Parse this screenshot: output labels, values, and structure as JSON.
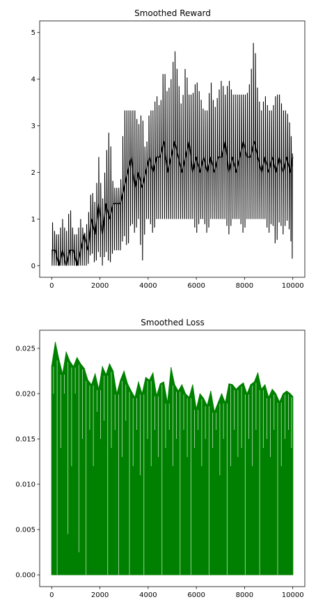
{
  "chart_data": [
    {
      "type": "line",
      "title": "Smoothed Reward",
      "xlabel": "",
      "ylabel": "",
      "xlim": [
        -500,
        10500
      ],
      "ylim": [
        -0.25,
        5.25
      ],
      "xticks": [
        0,
        2000,
        4000,
        6000,
        8000,
        10000
      ],
      "yticks": [
        0,
        1,
        2,
        3,
        4,
        5
      ],
      "xtick_labels": [
        "0",
        "2000",
        "4000",
        "6000",
        "8000",
        "10000"
      ],
      "ytick_labels": [
        "0",
        "1",
        "2",
        "3",
        "4",
        "5"
      ],
      "grid": false,
      "series": [
        {
          "color": "#000000",
          "x": [
            0,
            150,
            300,
            450,
            600,
            750,
            900,
            1050,
            1200,
            1350,
            1500,
            1650,
            1800,
            1950,
            2100,
            2250,
            2400,
            2550,
            2700,
            2850,
            3000,
            3150,
            3300,
            3450,
            3600,
            3750,
            3900,
            4050,
            4200,
            4350,
            4500,
            4650,
            4800,
            4950,
            5100,
            5250,
            5400,
            5550,
            5700,
            5850,
            6000,
            6150,
            6300,
            6450,
            6600,
            6750,
            6900,
            7050,
            7200,
            7350,
            7500,
            7650,
            7800,
            7950,
            8100,
            8250,
            8400,
            8550,
            8700,
            8850,
            9000,
            9150,
            9300,
            9450,
            9600,
            9750,
            9900,
            10000
          ],
          "y": [
            0.33,
            0.33,
            0.0,
            0.33,
            0.0,
            0.33,
            0.33,
            0.0,
            0.33,
            0.67,
            0.33,
            1.0,
            0.67,
            1.33,
            0.67,
            1.33,
            1.0,
            1.33,
            1.33,
            1.33,
            1.67,
            2.0,
            2.33,
            1.67,
            2.0,
            1.67,
            2.0,
            2.33,
            2.0,
            2.33,
            2.33,
            2.67,
            2.0,
            2.33,
            2.67,
            2.33,
            2.0,
            2.33,
            2.67,
            2.0,
            2.33,
            2.0,
            2.33,
            2.0,
            2.33,
            2.0,
            2.33,
            2.33,
            2.67,
            2.0,
            2.33,
            2.0,
            2.33,
            2.67,
            2.33,
            2.33,
            2.67,
            2.33,
            2.0,
            2.33,
            2.0,
            2.33,
            2.0,
            2.33,
            2.0,
            2.33,
            2.0,
            2.33
          ],
          "low": [
            0.0,
            0.0,
            0.0,
            0.0,
            0.0,
            0.0,
            0.0,
            0.0,
            0.0,
            0.0,
            0.0,
            0.33,
            0.0,
            0.33,
            0.0,
            0.33,
            0.0,
            0.33,
            0.33,
            0.33,
            0.67,
            0.33,
            1.0,
            0.67,
            1.0,
            0.0,
            1.0,
            1.0,
            0.67,
            1.0,
            1.0,
            1.0,
            1.0,
            1.0,
            1.0,
            1.0,
            1.0,
            1.0,
            1.0,
            1.0,
            0.67,
            1.0,
            1.0,
            0.67,
            1.0,
            1.0,
            1.0,
            1.0,
            1.0,
            0.67,
            1.0,
            1.0,
            1.0,
            0.67,
            1.0,
            1.0,
            1.0,
            1.0,
            1.0,
            1.0,
            0.67,
            1.0,
            0.33,
            1.0,
            0.67,
            1.0,
            0.67,
            0.0
          ],
          "high": [
            1.0,
            0.67,
            0.67,
            1.0,
            0.67,
            1.33,
            0.67,
            0.67,
            1.0,
            0.67,
            1.0,
            1.67,
            1.33,
            2.33,
            1.33,
            2.33,
            3.0,
            1.67,
            1.67,
            1.67,
            3.33,
            3.33,
            3.33,
            3.33,
            3.0,
            3.33,
            2.33,
            3.33,
            3.33,
            3.67,
            3.33,
            4.33,
            3.67,
            4.0,
            4.67,
            4.0,
            3.33,
            4.33,
            3.67,
            3.67,
            4.0,
            3.67,
            3.33,
            3.33,
            4.0,
            3.33,
            3.67,
            4.0,
            3.67,
            4.0,
            3.67,
            3.67,
            3.67,
            3.67,
            3.67,
            4.0,
            5.0,
            3.67,
            3.33,
            3.67,
            3.33,
            3.33,
            3.67,
            3.67,
            3.33,
            3.33,
            3.0,
            2.33
          ]
        }
      ]
    },
    {
      "type": "bar",
      "title": "Smoothed Loss",
      "xlabel": "",
      "ylabel": "",
      "xlim": [
        -500,
        10500
      ],
      "ylim": [
        -0.0013,
        0.027
      ],
      "xticks": [
        0,
        2000,
        4000,
        6000,
        8000,
        10000
      ],
      "yticks": [
        0.0,
        0.005,
        0.01,
        0.015,
        0.02,
        0.025
      ],
      "xtick_labels": [
        "0",
        "2000",
        "4000",
        "6000",
        "8000",
        "10000"
      ],
      "ytick_labels": [
        "0.000",
        "0.005",
        "0.010",
        "0.015",
        "0.020",
        "0.025"
      ],
      "grid": false,
      "series": [
        {
          "color": "#008000",
          "x": [
            0,
            150,
            300,
            450,
            600,
            750,
            900,
            1050,
            1200,
            1350,
            1500,
            1650,
            1800,
            1950,
            2100,
            2250,
            2400,
            2550,
            2700,
            2850,
            3000,
            3150,
            3300,
            3450,
            3600,
            3750,
            3900,
            4050,
            4200,
            4350,
            4500,
            4650,
            4800,
            4950,
            5100,
            5250,
            5400,
            5550,
            5700,
            5850,
            6000,
            6150,
            6300,
            6450,
            6600,
            6750,
            6900,
            7050,
            7200,
            7350,
            7500,
            7650,
            7800,
            7950,
            8100,
            8250,
            8400,
            8550,
            8700,
            8850,
            9000,
            9150,
            9300,
            9450,
            9600,
            9750,
            9900,
            10000
          ],
          "values": [
            0.0231,
            0.0257,
            0.0238,
            0.0222,
            0.0246,
            0.0236,
            0.023,
            0.024,
            0.0233,
            0.0228,
            0.0215,
            0.021,
            0.0222,
            0.0205,
            0.023,
            0.0221,
            0.0233,
            0.0225,
            0.02,
            0.0215,
            0.0225,
            0.0211,
            0.0203,
            0.0196,
            0.0213,
            0.02,
            0.0218,
            0.0215,
            0.0223,
            0.0198,
            0.0211,
            0.0213,
            0.019,
            0.0229,
            0.021,
            0.0203,
            0.021,
            0.02,
            0.0196,
            0.021,
            0.0183,
            0.02,
            0.0195,
            0.0187,
            0.0203,
            0.018,
            0.019,
            0.02,
            0.019,
            0.0211,
            0.021,
            0.0205,
            0.0209,
            0.0212,
            0.02,
            0.021,
            0.0213,
            0.0223,
            0.0205,
            0.021,
            0.0196,
            0.0205,
            0.02,
            0.0191,
            0.02,
            0.0203,
            0.02,
            0.0197
          ],
          "dips": [
            0.02,
            0.0,
            0.014,
            0.02,
            0.0045,
            0.012,
            0.02,
            0.0025,
            0.015,
            0.0,
            0.016,
            0.012,
            0.018,
            0.015,
            0.017,
            0.0,
            0.014,
            0.016,
            0.0,
            0.013,
            0.017,
            0.0,
            0.012,
            0.016,
            0.011,
            0.0,
            0.015,
            0.012,
            0.016,
            0.013,
            0.0,
            0.014,
            0.016,
            0.012,
            0.015,
            0.0,
            0.016,
            0.013,
            0.0,
            0.014,
            0.016,
            0.012,
            0.015,
            0.0,
            0.014,
            0.016,
            0.011,
            0.015,
            0.0,
            0.012,
            0.016,
            0.013,
            0.014,
            0.0,
            0.015,
            0.012,
            0.016,
            0.0,
            0.014,
            0.015,
            0.013,
            0.016,
            0.0,
            0.012,
            0.015,
            0.016,
            0.014,
            0.018
          ]
        }
      ]
    }
  ]
}
